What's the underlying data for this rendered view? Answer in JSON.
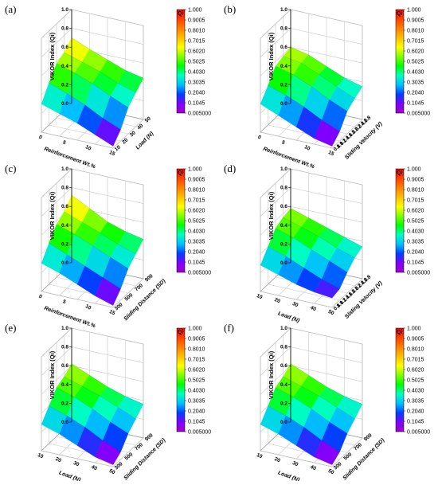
{
  "figure": {
    "colorbar": {
      "label": "Qi",
      "ticks": [
        "1.000",
        "0.9005",
        "0.8010",
        "0.7015",
        "0.6020",
        "0.5025",
        "0.4030",
        "0.3035",
        "0.2040",
        "0.1045",
        "0.005000"
      ],
      "colors": [
        "#ff0000",
        "#ff4000",
        "#ff8000",
        "#ffbf00",
        "#ffff00",
        "#80ff00",
        "#00ff00",
        "#00ffbf",
        "#00bfff",
        "#0040ff",
        "#8000ff",
        "#a000c8"
      ]
    }
  },
  "chart_data": [
    {
      "type": "surface",
      "panel": "(a)",
      "zlabel": "VIKOR Index (Qi)",
      "xlabel": "Reinforcement Wt.%",
      "ylabel": "Load (N)",
      "zlim": [
        0,
        1
      ],
      "zticks": [
        "0.0",
        "0.2",
        "0.4",
        "0.6",
        "0.8",
        "1.0"
      ],
      "xticks": [
        "0",
        "5",
        "10",
        "15"
      ],
      "yticks": [
        "10",
        "20",
        "30",
        "40",
        "50"
      ],
      "z": [
        [
          0.7,
          0.62,
          0.55,
          0.48,
          0.44
        ],
        [
          0.62,
          0.56,
          0.5,
          0.42,
          0.36
        ],
        [
          0.58,
          0.52,
          0.45,
          0.36,
          0.28
        ],
        [
          0.45,
          0.38,
          0.3,
          0.2,
          0.12
        ],
        [
          0.3,
          0.24,
          0.18,
          0.1,
          0.02
        ]
      ]
    },
    {
      "type": "surface",
      "panel": "(b)",
      "zlabel": "VIKOR Index (Qi)",
      "xlabel": "Reinforcement Wt.%",
      "ylabel": "Sliding Velocity (V)",
      "zlim": [
        0,
        1
      ],
      "zticks": [
        "0.0",
        "0.2",
        "0.4",
        "0.6",
        "0.8",
        "1.0"
      ],
      "xticks": [
        "0",
        "5",
        "10",
        "15"
      ],
      "yticks": [
        "0.8",
        "1.0",
        "1.2",
        "1.4",
        "1.6",
        "1.8",
        "2.0",
        "2.2",
        "2.4",
        "2.6",
        "2.8"
      ],
      "z": [
        [
          0.6,
          0.56,
          0.48,
          0.4,
          0.35
        ],
        [
          0.58,
          0.55,
          0.47,
          0.38,
          0.3
        ],
        [
          0.55,
          0.5,
          0.42,
          0.32,
          0.24
        ],
        [
          0.42,
          0.36,
          0.28,
          0.18,
          0.1
        ],
        [
          0.3,
          0.22,
          0.14,
          0.06,
          0.02
        ]
      ]
    },
    {
      "type": "surface",
      "panel": "(c)",
      "zlabel": "VIKOR Index (Qi)",
      "xlabel": "Reinforcement Wt.%",
      "ylabel": "Sliding Distance (SD)",
      "zlim": [
        0,
        1
      ],
      "zticks": [
        "0.0",
        "0.2",
        "0.4",
        "0.6",
        "0.8",
        "1.0"
      ],
      "xticks": [
        "0",
        "5",
        "10",
        "15"
      ],
      "yticks": [
        "300",
        "500",
        "700",
        "900"
      ],
      "z": [
        [
          0.72,
          0.62,
          0.52,
          0.46,
          0.42
        ],
        [
          0.62,
          0.55,
          0.48,
          0.4,
          0.34
        ],
        [
          0.56,
          0.5,
          0.42,
          0.34,
          0.26
        ],
        [
          0.44,
          0.36,
          0.28,
          0.2,
          0.12
        ],
        [
          0.3,
          0.24,
          0.16,
          0.08,
          0.02
        ]
      ]
    },
    {
      "type": "surface",
      "panel": "(d)",
      "zlabel": "VIKOR Index (Qi)",
      "xlabel": "Load (N)",
      "ylabel": "Sliding Velocity (V)",
      "zlim": [
        0,
        1
      ],
      "zticks": [
        "0.0",
        "0.2",
        "0.4",
        "0.6",
        "0.8",
        "1.0"
      ],
      "xticks": [
        "10",
        "20",
        "30",
        "40",
        "50"
      ],
      "yticks": [
        "0.8",
        "1.0",
        "1.2",
        "1.4",
        "1.6",
        "1.8",
        "2.0",
        "2.2",
        "2.4",
        "2.6",
        "2.8"
      ],
      "z": [
        [
          0.58,
          0.52,
          0.46,
          0.4,
          0.34
        ],
        [
          0.56,
          0.5,
          0.44,
          0.36,
          0.3
        ],
        [
          0.52,
          0.46,
          0.38,
          0.3,
          0.22
        ],
        [
          0.4,
          0.34,
          0.26,
          0.18,
          0.12
        ],
        [
          0.28,
          0.22,
          0.16,
          0.12,
          0.1
        ]
      ]
    },
    {
      "type": "surface",
      "panel": "(e)",
      "zlabel": "VIKOR Index (Qi)",
      "xlabel": "Load (N)",
      "ylabel": "Sliding Distance (SD)",
      "zlim": [
        0,
        1
      ],
      "zticks": [
        "0.0",
        "0.2",
        "0.4",
        "0.6",
        "0.8",
        "1.0"
      ],
      "xticks": [
        "10",
        "20",
        "30",
        "40",
        "50"
      ],
      "yticks": [
        "300",
        "500",
        "700",
        "900"
      ],
      "z": [
        [
          0.62,
          0.54,
          0.46,
          0.4,
          0.36
        ],
        [
          0.56,
          0.5,
          0.44,
          0.36,
          0.28
        ],
        [
          0.52,
          0.46,
          0.38,
          0.28,
          0.2
        ],
        [
          0.4,
          0.34,
          0.26,
          0.16,
          0.08
        ],
        [
          0.28,
          0.22,
          0.14,
          0.06,
          0.02
        ]
      ]
    },
    {
      "type": "surface",
      "panel": "(f)",
      "zlabel": "VIKOR Index (Qi)",
      "xlabel": "Load (N)",
      "ylabel": "Sliding Distance (SD)",
      "zlim": [
        0,
        1
      ],
      "zticks": [
        "0.0",
        "0.2",
        "0.4",
        "0.6",
        "0.8",
        "1.0"
      ],
      "xticks": [
        "10",
        "20",
        "30",
        "40",
        "50"
      ],
      "yticks": [
        "300",
        "500",
        "700",
        "900"
      ],
      "z": [
        [
          0.62,
          0.54,
          0.46,
          0.4,
          0.36
        ],
        [
          0.56,
          0.5,
          0.44,
          0.36,
          0.28
        ],
        [
          0.52,
          0.46,
          0.38,
          0.28,
          0.2
        ],
        [
          0.4,
          0.34,
          0.26,
          0.16,
          0.08
        ],
        [
          0.28,
          0.22,
          0.14,
          0.06,
          0.02
        ]
      ]
    }
  ]
}
